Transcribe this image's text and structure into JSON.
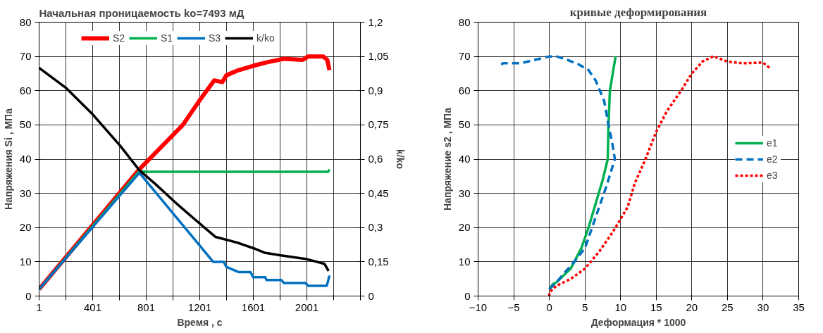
{
  "chart_data": [
    {
      "type": "line",
      "title": "Начальная проницаемость ko=7493 мД",
      "xlabel": "Время , с",
      "ylabel": "Напряжения Si , МПа",
      "y2label": "k/ko",
      "xlim": [
        1,
        2401
      ],
      "xticks": [
        1,
        {
          "value": 201,
          "label": null
        },
        401,
        {
          "value": 601,
          "label": null
        },
        801,
        {
          "value": 1001,
          "label": null
        },
        1201,
        {
          "value": 1401,
          "label": null
        },
        1601,
        {
          "value": 1801,
          "label": null
        },
        2001,
        {
          "value": 2201,
          "label": null
        },
        {
          "value": 2401,
          "label": null
        }
      ],
      "ylim": [
        0,
        80
      ],
      "yticks": [
        0,
        10,
        20,
        30,
        40,
        50,
        60,
        70,
        80
      ],
      "y2lim": [
        0,
        1.2
      ],
      "y2ticks": [
        0,
        {
          "value": 0.15,
          "label": "0,15"
        },
        {
          "value": 0.3,
          "label": "0,3"
        },
        {
          "value": 0.45,
          "label": "0,45"
        },
        {
          "value": 0.6,
          "label": "0,6"
        },
        {
          "value": 0.75,
          "label": "0,75"
        },
        {
          "value": 0.9,
          "label": "0,9"
        },
        {
          "value": 1.05,
          "label": "1,05"
        },
        {
          "value": 1.2,
          "label": "1,2"
        }
      ],
      "grid": true,
      "legend": "top",
      "line_style": "solid",
      "series": [
        {
          "name": "S2",
          "color": "#ff0000",
          "x": [
            1,
            749,
            1075,
            1197,
            1309,
            1370,
            1400,
            1492,
            1604,
            1706,
            1828,
            1970,
            2011,
            2123,
            2153,
            2170
          ],
          "values": [
            2,
            37,
            50,
            57,
            63,
            62.5,
            64.5,
            66,
            67.3,
            68.3,
            69.3,
            69,
            70,
            70,
            69,
            66
          ]
        },
        {
          "name": "S1",
          "color": "#00b050",
          "x": [
            1,
            749,
            800,
            1200,
            1600,
            2000,
            2160,
            2170
          ],
          "values": [
            2,
            36.5,
            36.3,
            36.3,
            36.3,
            36.3,
            36.3,
            37
          ]
        },
        {
          "name": "S3",
          "color": "#0070c0",
          "x": [
            1,
            750,
            1301,
            1380,
            1400,
            1490,
            1580,
            1600,
            1690,
            1700,
            1810,
            1830,
            1990,
            2010,
            2150,
            2170
          ],
          "values": [
            2,
            36,
            10,
            10,
            8.5,
            7,
            7,
            5.5,
            5.5,
            4.7,
            4.7,
            3.8,
            3.8,
            3,
            3,
            6
          ]
        },
        {
          "name": "k/ko",
          "color": "#000000",
          "axis": "y2",
          "x": [
            1,
            200,
            403,
            607,
            749,
            871,
            1034,
            1156,
            1319,
            1481,
            1604,
            1685,
            1807,
            1990,
            2133,
            2163
          ],
          "values": [
            1.0,
            0.913,
            0.795,
            0.658,
            0.552,
            0.49,
            0.402,
            0.34,
            0.259,
            0.234,
            0.209,
            0.19,
            0.178,
            0.163,
            0.141,
            0.11
          ]
        }
      ]
    },
    {
      "type": "line",
      "title": "кривые деформирования",
      "xlabel": "Деформация * 1000",
      "ylabel": "Напряжение s2 , МПа",
      "xlim": [
        -10,
        35
      ],
      "xticks": [
        -10,
        -5,
        0,
        5,
        10,
        15,
        20,
        25,
        30,
        35
      ],
      "ylim": [
        0,
        80
      ],
      "yticks": [
        0,
        10,
        20,
        30,
        40,
        50,
        60,
        70,
        80
      ],
      "grid": true,
      "legend": "right",
      "series": [
        {
          "name": "e1",
          "color": "#00b050",
          "line_style": "solid",
          "x": [
            0,
            0.5,
            1,
            2,
            3,
            3.5,
            4.5,
            5.5,
            6.5,
            7.5,
            8.2,
            8.3,
            8.5,
            8.9,
            9.3
          ],
          "values": [
            2,
            3.5,
            4,
            6,
            8,
            10,
            14,
            20,
            27,
            34,
            40,
            50,
            60,
            65,
            70
          ]
        },
        {
          "name": "e2",
          "color": "#0070c0",
          "line_style": "dashed",
          "x": [
            0,
            1,
            2,
            3.5,
            5,
            6,
            7,
            8,
            9.2,
            8.8,
            8.3,
            7.7,
            6.5,
            5.5,
            4,
            2.5,
            1,
            0,
            -2,
            -4,
            -6.5,
            -7
          ],
          "values": [
            2,
            4,
            6.5,
            10,
            14,
            20,
            26,
            32,
            40,
            45,
            50,
            57,
            63,
            66,
            67.8,
            69,
            70,
            70,
            69,
            68,
            68,
            67
          ]
        },
        {
          "name": "e3",
          "color": "#ff0000",
          "line_style": "dotted",
          "x": [
            0,
            0,
            1,
            3,
            5,
            7,
            9,
            11,
            12,
            13.5,
            15,
            16.5,
            18.5,
            20,
            21.5,
            23,
            25,
            27,
            30,
            31
          ],
          "values": [
            0,
            1,
            3,
            5,
            8,
            13,
            19,
            26,
            33,
            40,
            48,
            54,
            60,
            65,
            68.5,
            70,
            68.5,
            68,
            68.2,
            66.5
          ]
        }
      ]
    }
  ]
}
